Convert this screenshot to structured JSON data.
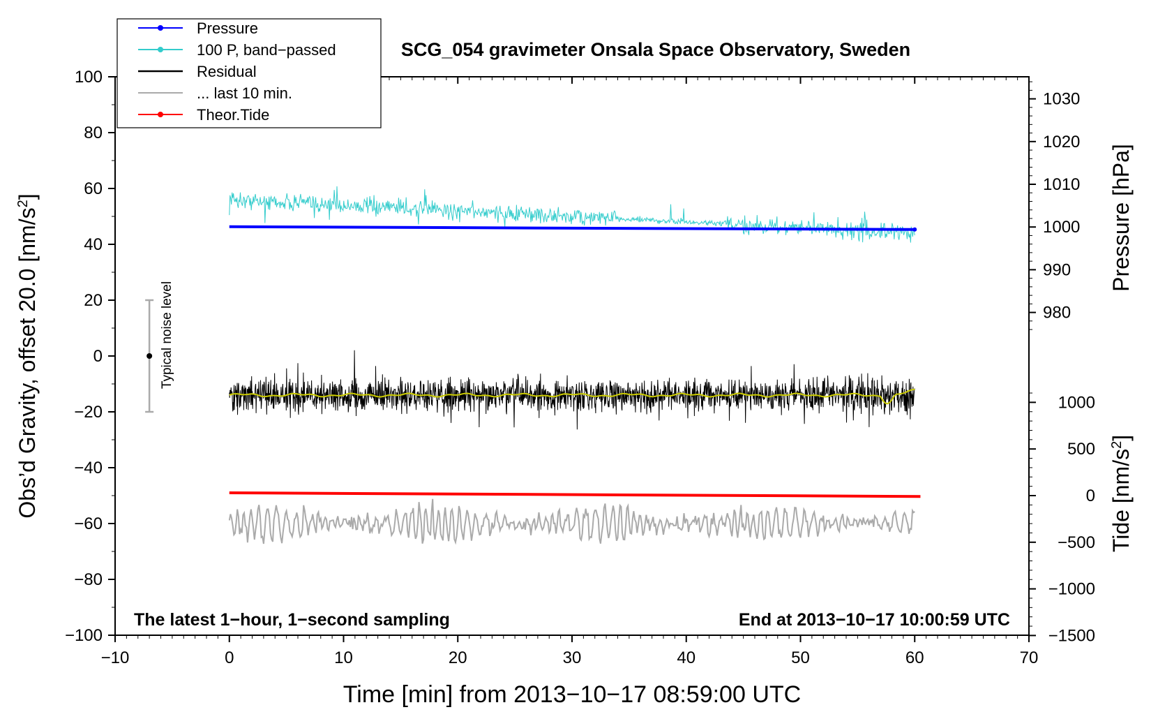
{
  "chart_data": {
    "type": "line",
    "title": "SCG_054 gravimeter Onsala Space Observatory, Sweden",
    "xlabel": "Time [min] from 2013−10−17 08:59:00 UTC",
    "ylabel_left": "Obs’d Gravity, offset 20.0 [nm/s",
    "ylabel_left_sup": "2",
    "ylabel_left_close": "]",
    "ylabel_right_pressure": "Pressure [hPa]",
    "ylabel_right_tide": "Tide [nm/s",
    "ylabel_right_tide_sup": "2",
    "ylabel_right_tide_close": "]",
    "xlim": [
      -10,
      70
    ],
    "ylim": [
      -100,
      100
    ],
    "x_ticks": [
      "−10",
      "0",
      "10",
      "20",
      "30",
      "40",
      "50",
      "60",
      "70"
    ],
    "x_tick_values": [
      -10,
      0,
      10,
      20,
      30,
      40,
      50,
      60,
      70
    ],
    "y_ticks": [
      "100",
      "80",
      "60",
      "40",
      "20",
      "0",
      "−20",
      "−40",
      "−60",
      "−80",
      "−100"
    ],
    "y_tick_values": [
      100,
      80,
      60,
      40,
      20,
      0,
      -20,
      -40,
      -60,
      -80,
      -100
    ],
    "pressure_axis": {
      "ticks": [
        "1030",
        "1020",
        "1010",
        "1000",
        "990",
        "980"
      ],
      "values": [
        1030,
        1020,
        1010,
        1000,
        990,
        980
      ],
      "gravity_at_1000": 46.2,
      "gravity_per_hpa": 1.53
    },
    "tide_axis": {
      "ticks": [
        "1000",
        "500",
        "0",
        "−500",
        "−1000",
        "−1500"
      ],
      "values": [
        1000,
        500,
        0,
        -500,
        -1000,
        -1500
      ],
      "gravity_at_0": -50.0,
      "gravity_per_unit": 0.0334
    },
    "series": [
      {
        "name": "Pressure",
        "color": "#0000ff",
        "start": [
          0,
          46.3
        ],
        "end": [
          60,
          45.3
        ]
      },
      {
        "name": "100 P, band−passed",
        "color": "#33cccc",
        "start": [
          0,
          56.0
        ],
        "end": [
          60,
          44.0
        ]
      },
      {
        "name": "Residual",
        "color": "#000000",
        "mean": -14.0
      },
      {
        "name": "... last 10 min.",
        "color": "#aaaaaa",
        "mean": -60.0
      },
      {
        "name": "Theor.Tide",
        "color": "#ff0000",
        "start": [
          0,
          -49.0
        ],
        "end": [
          60.5,
          -50.3
        ]
      }
    ],
    "smoothed_residual_color": "#cccc00",
    "legend": [
      {
        "label": "Pressure",
        "color": "#0000ff",
        "marker": true
      },
      {
        "label": "100 P, band−passed",
        "color": "#33cccc",
        "marker": true
      },
      {
        "label": "Residual",
        "color": "#000000",
        "marker": false
      },
      {
        "label": "... last 10 min.",
        "color": "#aaaaaa",
        "marker": false
      },
      {
        "label": "Theor.Tide",
        "color": "#ff0000",
        "marker": true
      }
    ],
    "legend_position": "top-left",
    "noise_bar": {
      "label": "Typical noise level",
      "x": -7,
      "center": 0,
      "low": -20,
      "high": 20
    },
    "annotation_left": "The latest 1−hour, 1−second sampling",
    "annotation_right": "End at 2013−10−17 10:00:59 UTC"
  }
}
